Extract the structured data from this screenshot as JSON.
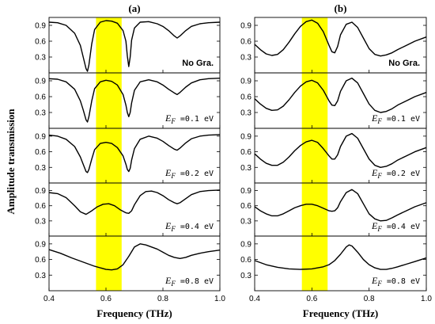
{
  "figure": {
    "ylabel": "Amplitude transmission",
    "highlight_color": "#ffff00",
    "curve_color": "#000000"
  },
  "chart_data": [
    {
      "type": "line",
      "panel": "(a)",
      "xlabel": "Frequency (THz)",
      "xlim": [
        0.4,
        1.0
      ],
      "xticks": [
        "0.4",
        "0.6",
        "0.8",
        "1.0"
      ],
      "highlight_band": [
        0.565,
        0.655
      ],
      "subplots": [
        {
          "label_type": "text",
          "label_text": "No Gra.",
          "ylim": [
            0.0,
            1.05
          ],
          "yticks": [
            "0.9",
            "0.6",
            "0.3"
          ],
          "x": [
            0.4,
            0.43,
            0.46,
            0.49,
            0.51,
            0.52,
            0.53,
            0.535,
            0.54,
            0.55,
            0.56,
            0.58,
            0.6,
            0.62,
            0.64,
            0.66,
            0.67,
            0.675,
            0.68,
            0.685,
            0.69,
            0.7,
            0.72,
            0.75,
            0.78,
            0.8,
            0.82,
            0.84,
            0.85,
            0.86,
            0.88,
            0.9,
            0.93,
            0.96,
            1.0
          ],
          "y": [
            0.96,
            0.95,
            0.9,
            0.75,
            0.52,
            0.3,
            0.08,
            0.03,
            0.15,
            0.55,
            0.82,
            0.96,
            0.99,
            0.98,
            0.94,
            0.8,
            0.6,
            0.32,
            0.12,
            0.3,
            0.62,
            0.85,
            0.96,
            0.97,
            0.93,
            0.88,
            0.8,
            0.7,
            0.66,
            0.7,
            0.8,
            0.88,
            0.93,
            0.95,
            0.96
          ]
        },
        {
          "label_type": "ef",
          "label_value": "=0.1",
          "label_unit": "eV",
          "ylim": [
            0.0,
            1.05
          ],
          "yticks": [
            "0.9",
            "0.6",
            "0.3"
          ],
          "x": [
            0.4,
            0.43,
            0.46,
            0.49,
            0.51,
            0.52,
            0.53,
            0.535,
            0.54,
            0.55,
            0.56,
            0.58,
            0.6,
            0.62,
            0.64,
            0.66,
            0.67,
            0.675,
            0.68,
            0.685,
            0.69,
            0.7,
            0.72,
            0.75,
            0.78,
            0.8,
            0.82,
            0.84,
            0.85,
            0.86,
            0.88,
            0.9,
            0.93,
            0.96,
            1.0
          ],
          "y": [
            0.94,
            0.93,
            0.88,
            0.74,
            0.52,
            0.35,
            0.16,
            0.12,
            0.22,
            0.52,
            0.75,
            0.88,
            0.91,
            0.89,
            0.82,
            0.64,
            0.44,
            0.3,
            0.22,
            0.3,
            0.48,
            0.72,
            0.88,
            0.92,
            0.88,
            0.82,
            0.74,
            0.67,
            0.64,
            0.68,
            0.78,
            0.86,
            0.92,
            0.94,
            0.95
          ]
        },
        {
          "label_type": "ef",
          "label_value": "=0.2",
          "label_unit": "eV",
          "ylim": [
            0.0,
            1.05
          ],
          "yticks": [
            "0.9",
            "0.6",
            "0.3"
          ],
          "x": [
            0.4,
            0.43,
            0.46,
            0.49,
            0.51,
            0.52,
            0.53,
            0.535,
            0.54,
            0.55,
            0.56,
            0.58,
            0.6,
            0.62,
            0.64,
            0.66,
            0.67,
            0.675,
            0.68,
            0.685,
            0.69,
            0.7,
            0.72,
            0.75,
            0.78,
            0.8,
            0.82,
            0.84,
            0.85,
            0.86,
            0.88,
            0.9,
            0.93,
            0.96,
            1.0
          ],
          "y": [
            0.92,
            0.9,
            0.84,
            0.7,
            0.5,
            0.36,
            0.22,
            0.2,
            0.26,
            0.46,
            0.64,
            0.76,
            0.78,
            0.76,
            0.68,
            0.52,
            0.36,
            0.26,
            0.22,
            0.28,
            0.44,
            0.66,
            0.84,
            0.9,
            0.86,
            0.8,
            0.72,
            0.65,
            0.63,
            0.67,
            0.77,
            0.85,
            0.9,
            0.92,
            0.93
          ]
        },
        {
          "label_type": "ef",
          "label_value": "=0.4",
          "label_unit": "eV",
          "ylim": [
            0.0,
            1.05
          ],
          "yticks": [
            "0.9",
            "0.6",
            "0.3"
          ],
          "x": [
            0.4,
            0.43,
            0.46,
            0.49,
            0.51,
            0.53,
            0.55,
            0.57,
            0.59,
            0.61,
            0.63,
            0.65,
            0.67,
            0.68,
            0.69,
            0.7,
            0.72,
            0.74,
            0.76,
            0.78,
            0.8,
            0.82,
            0.84,
            0.85,
            0.86,
            0.88,
            0.9,
            0.93,
            0.96,
            1.0
          ],
          "y": [
            0.86,
            0.84,
            0.76,
            0.6,
            0.48,
            0.43,
            0.5,
            0.58,
            0.63,
            0.64,
            0.6,
            0.52,
            0.46,
            0.45,
            0.5,
            0.62,
            0.8,
            0.88,
            0.89,
            0.86,
            0.8,
            0.72,
            0.66,
            0.64,
            0.66,
            0.74,
            0.82,
            0.88,
            0.9,
            0.91
          ]
        },
        {
          "label_type": "ef",
          "label_value": "=0.8",
          "label_unit": "eV",
          "ylim": [
            0.0,
            1.05
          ],
          "yticks": [
            "0.9",
            "0.6",
            "0.3"
          ],
          "x": [
            0.4,
            0.44,
            0.48,
            0.52,
            0.56,
            0.6,
            0.62,
            0.64,
            0.66,
            0.68,
            0.7,
            0.72,
            0.74,
            0.76,
            0.78,
            0.8,
            0.82,
            0.84,
            0.86,
            0.88,
            0.9,
            0.93,
            0.96,
            1.0
          ],
          "y": [
            0.79,
            0.72,
            0.63,
            0.55,
            0.47,
            0.41,
            0.4,
            0.42,
            0.5,
            0.66,
            0.84,
            0.9,
            0.88,
            0.84,
            0.8,
            0.74,
            0.68,
            0.64,
            0.62,
            0.64,
            0.68,
            0.72,
            0.75,
            0.78
          ]
        }
      ]
    },
    {
      "type": "line",
      "panel": "(b)",
      "xlabel": "Frequency (THz)",
      "xlim": [
        0.4,
        1.0
      ],
      "xticks": [
        "0.4",
        "0.6",
        "0.8",
        "1.0"
      ],
      "highlight_band": [
        0.565,
        0.655
      ],
      "subplots": [
        {
          "label_type": "text",
          "label_text": "No Gra.",
          "ylim": [
            0.0,
            1.05
          ],
          "yticks": [
            "0.9",
            "0.6",
            "0.3"
          ],
          "x": [
            0.4,
            0.42,
            0.44,
            0.46,
            0.48,
            0.5,
            0.52,
            0.54,
            0.56,
            0.58,
            0.6,
            0.62,
            0.64,
            0.66,
            0.67,
            0.68,
            0.69,
            0.7,
            0.72,
            0.74,
            0.76,
            0.78,
            0.8,
            0.82,
            0.84,
            0.86,
            0.88,
            0.9,
            0.93,
            0.96,
            1.0
          ],
          "y": [
            0.54,
            0.44,
            0.36,
            0.33,
            0.35,
            0.44,
            0.58,
            0.74,
            0.88,
            0.97,
            1.0,
            0.94,
            0.78,
            0.52,
            0.4,
            0.38,
            0.5,
            0.72,
            0.92,
            0.96,
            0.86,
            0.66,
            0.46,
            0.35,
            0.32,
            0.34,
            0.38,
            0.44,
            0.52,
            0.6,
            0.68
          ]
        },
        {
          "label_type": "ef",
          "label_value": "=0.1",
          "label_unit": "eV",
          "ylim": [
            0.0,
            1.05
          ],
          "yticks": [
            "0.9",
            "0.6",
            "0.3"
          ],
          "x": [
            0.4,
            0.42,
            0.44,
            0.46,
            0.48,
            0.5,
            0.52,
            0.54,
            0.56,
            0.58,
            0.6,
            0.62,
            0.64,
            0.66,
            0.67,
            0.68,
            0.69,
            0.7,
            0.72,
            0.74,
            0.76,
            0.78,
            0.8,
            0.82,
            0.84,
            0.86,
            0.88,
            0.9,
            0.93,
            0.96,
            1.0
          ],
          "y": [
            0.56,
            0.46,
            0.38,
            0.34,
            0.35,
            0.42,
            0.54,
            0.68,
            0.8,
            0.88,
            0.91,
            0.86,
            0.72,
            0.52,
            0.44,
            0.43,
            0.52,
            0.7,
            0.9,
            0.95,
            0.86,
            0.66,
            0.46,
            0.34,
            0.3,
            0.32,
            0.37,
            0.44,
            0.52,
            0.6,
            0.68
          ]
        },
        {
          "label_type": "ef",
          "label_value": "=0.2",
          "label_unit": "eV",
          "ylim": [
            0.0,
            1.05
          ],
          "yticks": [
            "0.9",
            "0.6",
            "0.3"
          ],
          "x": [
            0.4,
            0.42,
            0.44,
            0.46,
            0.48,
            0.5,
            0.52,
            0.54,
            0.56,
            0.58,
            0.6,
            0.62,
            0.64,
            0.66,
            0.67,
            0.68,
            0.69,
            0.7,
            0.72,
            0.74,
            0.76,
            0.78,
            0.8,
            0.82,
            0.84,
            0.86,
            0.88,
            0.9,
            0.93,
            0.96,
            1.0
          ],
          "y": [
            0.56,
            0.46,
            0.38,
            0.34,
            0.34,
            0.4,
            0.5,
            0.62,
            0.72,
            0.79,
            0.82,
            0.78,
            0.66,
            0.52,
            0.46,
            0.46,
            0.54,
            0.7,
            0.9,
            0.95,
            0.86,
            0.66,
            0.46,
            0.34,
            0.3,
            0.32,
            0.37,
            0.44,
            0.52,
            0.6,
            0.68
          ]
        },
        {
          "label_type": "ef",
          "label_value": "=0.4",
          "label_unit": "eV",
          "ylim": [
            0.0,
            1.05
          ],
          "yticks": [
            "0.9",
            "0.6",
            "0.3"
          ],
          "x": [
            0.4,
            0.42,
            0.44,
            0.46,
            0.48,
            0.5,
            0.52,
            0.54,
            0.56,
            0.58,
            0.6,
            0.62,
            0.64,
            0.66,
            0.67,
            0.68,
            0.69,
            0.7,
            0.72,
            0.74,
            0.76,
            0.78,
            0.8,
            0.82,
            0.84,
            0.86,
            0.88,
            0.9,
            0.93,
            0.96,
            1.0
          ],
          "y": [
            0.58,
            0.5,
            0.44,
            0.4,
            0.4,
            0.44,
            0.5,
            0.56,
            0.6,
            0.63,
            0.63,
            0.6,
            0.55,
            0.5,
            0.49,
            0.5,
            0.56,
            0.68,
            0.86,
            0.92,
            0.84,
            0.64,
            0.44,
            0.34,
            0.3,
            0.31,
            0.36,
            0.42,
            0.5,
            0.58,
            0.66
          ]
        },
        {
          "label_type": "ef",
          "label_value": "=0.8",
          "label_unit": "eV",
          "ylim": [
            0.0,
            1.05
          ],
          "yticks": [
            "0.9",
            "0.6",
            "0.3"
          ],
          "x": [
            0.4,
            0.44,
            0.48,
            0.52,
            0.56,
            0.6,
            0.64,
            0.66,
            0.68,
            0.7,
            0.72,
            0.73,
            0.74,
            0.76,
            0.78,
            0.8,
            0.82,
            0.84,
            0.86,
            0.88,
            0.9,
            0.93,
            0.96,
            1.0
          ],
          "y": [
            0.58,
            0.5,
            0.45,
            0.42,
            0.41,
            0.42,
            0.46,
            0.5,
            0.58,
            0.7,
            0.84,
            0.88,
            0.86,
            0.74,
            0.6,
            0.5,
            0.44,
            0.41,
            0.41,
            0.43,
            0.46,
            0.51,
            0.56,
            0.63
          ]
        }
      ]
    }
  ]
}
